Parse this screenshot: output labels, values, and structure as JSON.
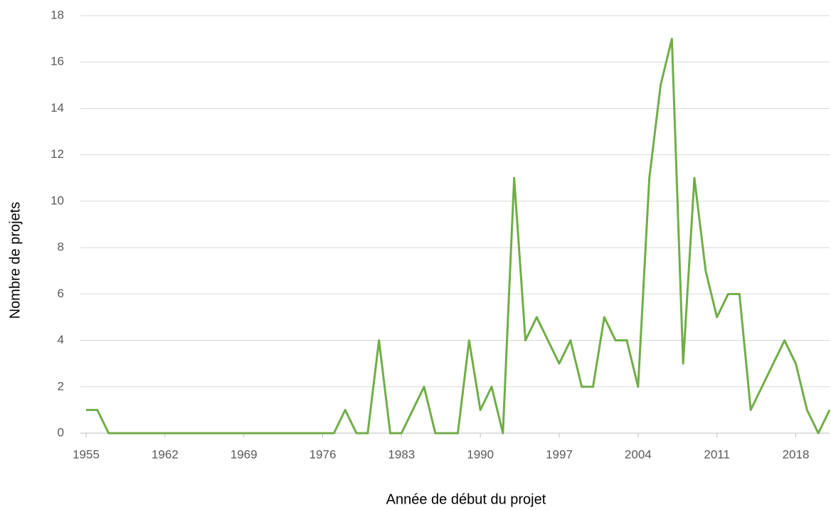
{
  "chart_data": {
    "type": "line",
    "xlabel": "Année de début du projet",
    "ylabel": "Nombre de projets",
    "x": [
      1955,
      1956,
      1957,
      1958,
      1959,
      1960,
      1961,
      1962,
      1963,
      1964,
      1965,
      1966,
      1967,
      1968,
      1969,
      1970,
      1971,
      1972,
      1973,
      1974,
      1975,
      1976,
      1977,
      1978,
      1979,
      1980,
      1981,
      1982,
      1983,
      1984,
      1985,
      1986,
      1987,
      1988,
      1989,
      1990,
      1991,
      1992,
      1993,
      1994,
      1995,
      1996,
      1997,
      1998,
      1999,
      2000,
      2001,
      2002,
      2003,
      2004,
      2005,
      2006,
      2007,
      2008,
      2009,
      2010,
      2011,
      2012,
      2013,
      2014,
      2015,
      2016,
      2017,
      2018,
      2019,
      2020,
      2021
    ],
    "series": [
      {
        "color": "#70ad47",
        "values": [
          1,
          1,
          0,
          0,
          0,
          0,
          0,
          0,
          0,
          0,
          0,
          0,
          0,
          0,
          0,
          0,
          0,
          0,
          0,
          0,
          0,
          0,
          0,
          1,
          0,
          0,
          4,
          0,
          0,
          1,
          2,
          0,
          0,
          0,
          4,
          1,
          2,
          0,
          11,
          4,
          5,
          4,
          3,
          4,
          2,
          2,
          5,
          4,
          4,
          2,
          11,
          15,
          17,
          3,
          11,
          7,
          5,
          6,
          6,
          1,
          2,
          3,
          4,
          3,
          1,
          0,
          1
        ]
      }
    ],
    "xlim": [
      1955,
      2021
    ],
    "xticks": [
      1955,
      1962,
      1969,
      1976,
      1983,
      1990,
      1997,
      2004,
      2011,
      2018
    ],
    "ylim": [
      0,
      18
    ],
    "yticks": [
      0,
      2,
      4,
      6,
      8,
      10,
      12,
      14,
      16,
      18
    ],
    "grid": true
  }
}
